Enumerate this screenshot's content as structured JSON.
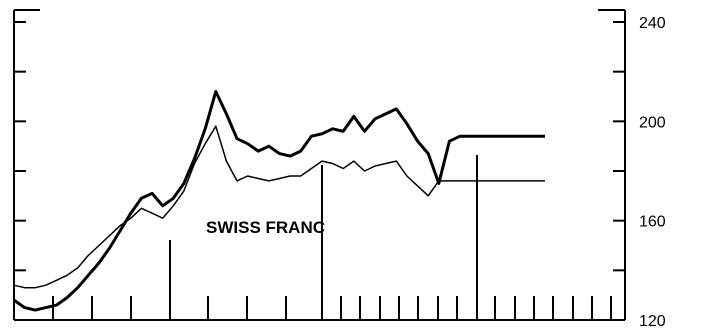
{
  "chart_data": {
    "type": "line",
    "title": "",
    "annotation": "SWISS FRANC",
    "xlabel": "",
    "ylabel": "",
    "ylim": [
      120,
      240
    ],
    "y_axis_side": "right",
    "y_ticks": [
      240,
      200,
      160,
      120
    ],
    "y_minor_ticks": [
      220,
      180,
      140
    ],
    "grid": false,
    "legend": "none",
    "x": [
      0,
      2,
      4,
      6,
      8,
      10,
      12,
      14,
      16,
      18,
      20,
      22,
      24,
      26,
      28,
      30,
      32,
      34,
      36,
      38,
      40,
      42,
      44,
      46,
      48,
      50,
      52,
      54,
      56,
      58,
      60,
      62,
      64,
      66,
      68,
      70,
      72,
      74,
      76,
      78,
      80,
      82,
      84,
      86,
      88,
      90,
      92,
      94,
      96,
      98,
      100
    ],
    "series": [
      {
        "style": "thick",
        "values": [
          128,
          125,
          124,
          125,
          126,
          129,
          133,
          138,
          143,
          149,
          156,
          163,
          169,
          171,
          166,
          169,
          175,
          185,
          197,
          212,
          203,
          193,
          191,
          188,
          190,
          187,
          186,
          188,
          194,
          195,
          197,
          196,
          202,
          196,
          201,
          203,
          205,
          199,
          192,
          187,
          175,
          192,
          194,
          194,
          194,
          194,
          194,
          194,
          194,
          194,
          194
        ]
      },
      {
        "style": "thin",
        "values": [
          134,
          133,
          133,
          134,
          136,
          138,
          141,
          146,
          150,
          154,
          158,
          161,
          165,
          163,
          161,
          166,
          172,
          183,
          191,
          198,
          184,
          176,
          178,
          177,
          176,
          177,
          178,
          178,
          181,
          184,
          183,
          181,
          184,
          180,
          182,
          183,
          184,
          178,
          174,
          170,
          176,
          176,
          176,
          176,
          176,
          176,
          176,
          176,
          176,
          176,
          176
        ]
      }
    ]
  }
}
